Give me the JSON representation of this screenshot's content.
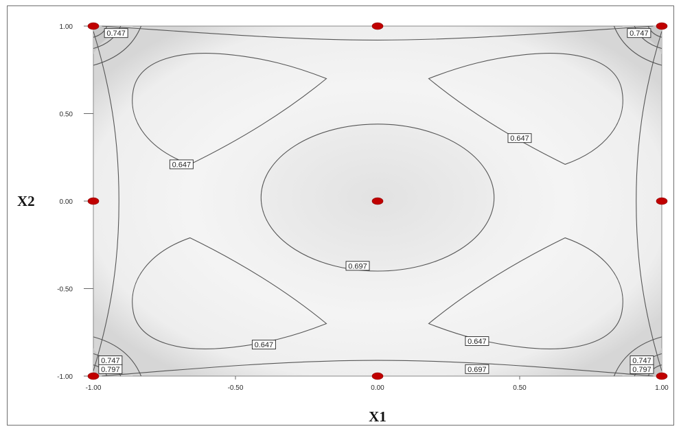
{
  "chart_data": {
    "type": "contour",
    "title": "",
    "xlabel": "X1",
    "ylabel": "X2",
    "xlim": [
      -1,
      1
    ],
    "ylim": [
      -1,
      1
    ],
    "x_ticks": [
      -1.0,
      -0.5,
      0.0,
      0.5,
      1.0
    ],
    "y_ticks": [
      -1.0,
      -0.5,
      0.0,
      0.5,
      1.0
    ],
    "x_tick_labels": [
      "-1.00",
      "-0.50",
      "0.00",
      "0.50",
      "1.00"
    ],
    "y_tick_labels": [
      "-1.00",
      "-0.50",
      "0.00",
      "0.50",
      "1.00"
    ],
    "contour_levels": [
      0.647,
      0.697,
      0.747,
      0.797
    ],
    "contour_labels": [
      {
        "text": "0.747",
        "x": -0.92,
        "y": 0.96
      },
      {
        "text": "0.747",
        "x": 0.92,
        "y": 0.96
      },
      {
        "text": "0.647",
        "x": -0.69,
        "y": 0.21
      },
      {
        "text": "0.647",
        "x": 0.5,
        "y": 0.36
      },
      {
        "text": "0.697",
        "x": -0.07,
        "y": -0.37
      },
      {
        "text": "0.647",
        "x": -0.4,
        "y": -0.82
      },
      {
        "text": "0.647",
        "x": 0.35,
        "y": -0.8
      },
      {
        "text": "0.747",
        "x": -0.94,
        "y": -0.91
      },
      {
        "text": "0.797",
        "x": -0.94,
        "y": -0.96
      },
      {
        "text": "0.697",
        "x": 0.35,
        "y": -0.96
      },
      {
        "text": "0.747",
        "x": 0.93,
        "y": -0.91
      },
      {
        "text": "0.797",
        "x": 0.93,
        "y": -0.96
      }
    ],
    "design_points": [
      {
        "x": -1,
        "y": 1
      },
      {
        "x": 0,
        "y": 1
      },
      {
        "x": 1,
        "y": 1
      },
      {
        "x": -1,
        "y": 0
      },
      {
        "x": 0,
        "y": 0
      },
      {
        "x": 1,
        "y": 0
      },
      {
        "x": -1,
        "y": -1
      },
      {
        "x": 0,
        "y": -1
      },
      {
        "x": 1,
        "y": -1
      }
    ],
    "point_color": "#c00000",
    "grid": false
  }
}
